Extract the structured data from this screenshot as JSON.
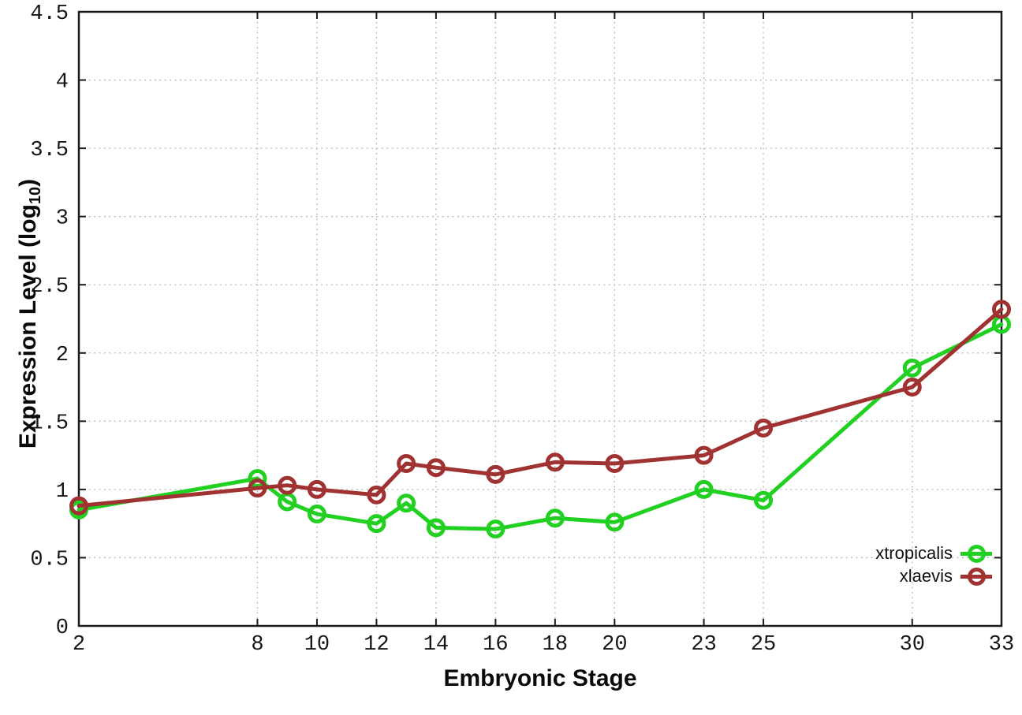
{
  "figure": {
    "background": "#ffffff",
    "border_color": "#1a1a1a",
    "grid_color": "#b0b0b0",
    "tick_label_color": "#161616",
    "ylabel_parts": {
      "prefix": "Expression Level (log",
      "sub": "10",
      "suffix": ")"
    }
  },
  "chart_data": {
    "type": "line",
    "title": "",
    "xlabel": "Embryonic Stage",
    "ylabel": "Expression Level (log10)",
    "xlim": [
      2,
      33
    ],
    "ylim": [
      0,
      4.5
    ],
    "grid": true,
    "legend_position": "bottom-right",
    "marker": "open-circle",
    "x": [
      2,
      8,
      9,
      10,
      12,
      13,
      14,
      16,
      18,
      20,
      23,
      25,
      30,
      33
    ],
    "xticks": [
      {
        "v": 2,
        "label": "2"
      },
      {
        "v": 8,
        "label": "8"
      },
      {
        "v": 10,
        "label": "10"
      },
      {
        "v": 12,
        "label": "12"
      },
      {
        "v": 14,
        "label": "14"
      },
      {
        "v": 16,
        "label": "16"
      },
      {
        "v": 18,
        "label": "18"
      },
      {
        "v": 20,
        "label": "20"
      },
      {
        "v": 23,
        "label": "23"
      },
      {
        "v": 25,
        "label": "25"
      },
      {
        "v": 30,
        "label": "30"
      },
      {
        "v": 33,
        "label": "33"
      }
    ],
    "yticks": [
      {
        "v": 0,
        "label": "0"
      },
      {
        "v": 0.5,
        "label": "0.5"
      },
      {
        "v": 1,
        "label": "1"
      },
      {
        "v": 1.5,
        "label": "1.5"
      },
      {
        "v": 2,
        "label": "2"
      },
      {
        "v": 2.5,
        "label": "2.5"
      },
      {
        "v": 3,
        "label": "3"
      },
      {
        "v": 3.5,
        "label": "3.5"
      },
      {
        "v": 4,
        "label": "4"
      },
      {
        "v": 4.5,
        "label": "4.5"
      }
    ],
    "series": [
      {
        "name": "xtropicalis",
        "color": "#22d022",
        "values": [
          0.85,
          1.08,
          0.91,
          0.82,
          0.75,
          0.9,
          0.72,
          0.71,
          0.79,
          0.76,
          1.0,
          0.92,
          1.89,
          2.21
        ]
      },
      {
        "name": "xlaevis",
        "color": "#a03232",
        "values": [
          0.88,
          1.01,
          1.03,
          1.0,
          0.96,
          1.19,
          1.16,
          1.11,
          1.2,
          1.19,
          1.25,
          1.45,
          1.75,
          2.32
        ]
      }
    ]
  }
}
